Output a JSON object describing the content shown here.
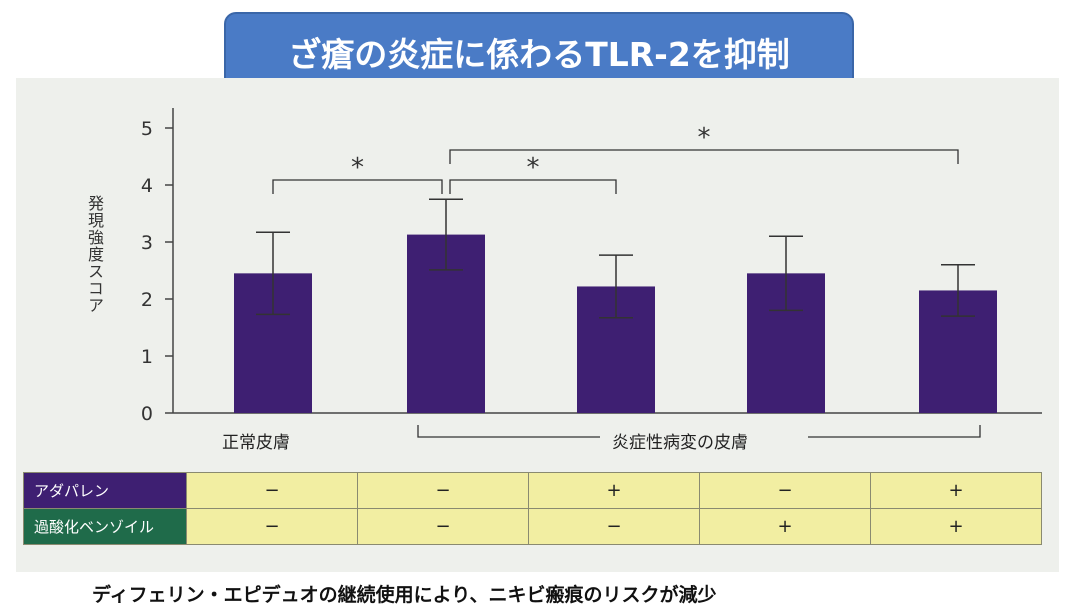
{
  "title": "ざ瘡の炎症に係わるTLR-2を抑制",
  "caption": "ディフェリン・エピデュオの継続使用により、ニキビ瘢痕のリスクが減少",
  "chart_data": {
    "type": "bar",
    "ylabel": "発現強度スコア",
    "ylim": [
      0,
      5
    ],
    "yticks": [
      "0",
      "1",
      "2",
      "3",
      "4",
      "5"
    ],
    "bar_color": "#3e1f72",
    "values": [
      2.45,
      3.13,
      2.22,
      2.45,
      2.15
    ],
    "errors": [
      0.72,
      0.62,
      0.55,
      0.65,
      0.45
    ],
    "group_labels": [
      "正常皮膚",
      "炎症性病変の皮膚"
    ],
    "significance_marker": "*",
    "significance": [
      {
        "from": 0,
        "to": 1,
        "label": "*"
      },
      {
        "from": 1,
        "to": 2,
        "label": "*"
      },
      {
        "from": 1,
        "to": 4,
        "label": "*"
      }
    ]
  },
  "table": {
    "rows": [
      {
        "label": "アダパレン",
        "color": "#3e1f72",
        "cells": [
          "−",
          "−",
          "+",
          "−",
          "+"
        ]
      },
      {
        "label": "過酸化ベンゾイル",
        "color": "#1f6b4a",
        "cells": [
          "−",
          "−",
          "−",
          "+",
          "+"
        ]
      }
    ]
  }
}
